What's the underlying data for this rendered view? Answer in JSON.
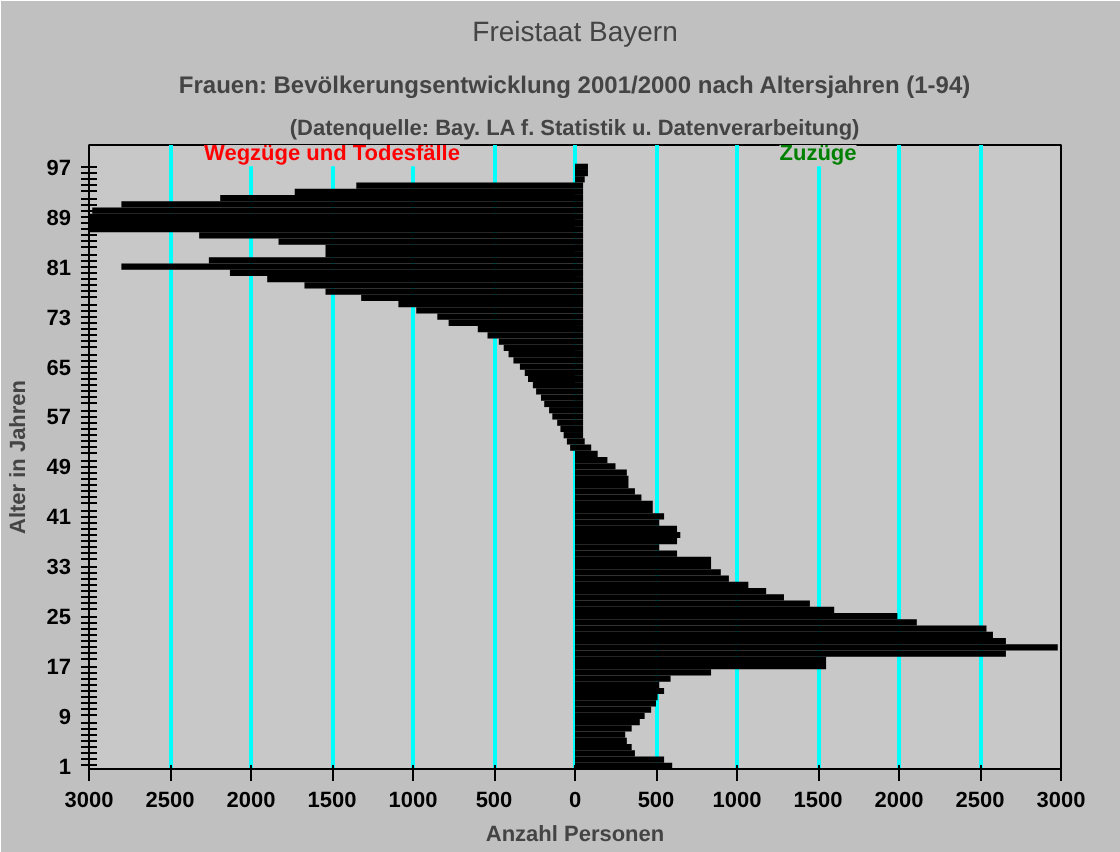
{
  "chart_data": {
    "type": "bar",
    "orientation": "horizontal",
    "title": "Freistaat Bayern",
    "subtitle": "Frauen: Bevölkerungsentwicklung 2001/2000 nach Altersjahren (1-94)",
    "annotations": [
      "(Datenquelle: Bay. LA f. Statistik u. Datenverarbeitung)",
      "Wegzüge und Todesfälle",
      "Zuzüge"
    ],
    "xlabel": "Anzahl Personen",
    "ylabel": "Alter in Jahren",
    "categories": [
      "97",
      null,
      null,
      null,
      null,
      null,
      null,
      null,
      "89",
      null,
      null,
      null,
      null,
      null,
      null,
      null,
      "81",
      null,
      null,
      null,
      null,
      null,
      null,
      null,
      "73",
      null,
      null,
      null,
      null,
      null,
      null,
      null,
      "65",
      null,
      null,
      null,
      null,
      null,
      null,
      null,
      "57",
      null,
      null,
      null,
      null,
      null,
      null,
      null,
      "49",
      null,
      null,
      null,
      null,
      null,
      null,
      null,
      "41",
      null,
      null,
      null,
      null,
      null,
      null,
      null,
      "33",
      null,
      null,
      null,
      null,
      null,
      null,
      null,
      "25",
      null,
      null,
      null,
      null,
      null,
      null,
      null,
      "17",
      null,
      null,
      null,
      null,
      null,
      null,
      null,
      "9",
      null,
      null,
      null,
      null,
      null,
      null,
      null,
      "1"
    ],
    "series": [
      {
        "color": "#000000",
        "values": [
          0,
          0,
          0,
          -1350,
          -1730,
          -2190,
          -2800,
          -2980,
          -3000,
          -3000,
          -3000,
          -2320,
          -1830,
          -1540,
          -1540,
          -2260,
          -2800,
          -2130,
          -1900,
          -1670,
          -1540,
          -1320,
          -1090,
          -980,
          -850,
          -780,
          -600,
          -540,
          -470,
          -440,
          -410,
          -380,
          -340,
          -310,
          -290,
          -260,
          -240,
          -210,
          -190,
          -160,
          -140,
          -110,
          -90,
          -70,
          -50,
          -30,
          0,
          0,
          0,
          0,
          0,
          0,
          0,
          0,
          0,
          0,
          0,
          0,
          0,
          0,
          0,
          0,
          0,
          0,
          0,
          0,
          0,
          0,
          0,
          0,
          0,
          0,
          0,
          0,
          0,
          0,
          0,
          0,
          0,
          0,
          0,
          0,
          0,
          0,
          0,
          0,
          0,
          0,
          0,
          0,
          0,
          0,
          0,
          0,
          0,
          0,
          0
        ]
      },
      {
        "color": "#000000",
        "values": [
          80,
          80,
          60,
          50,
          50,
          50,
          50,
          50,
          50,
          50,
          50,
          50,
          50,
          50,
          50,
          50,
          50,
          50,
          50,
          50,
          50,
          50,
          50,
          50,
          50,
          50,
          50,
          50,
          50,
          50,
          50,
          50,
          50,
          50,
          50,
          50,
          50,
          50,
          50,
          50,
          50,
          50,
          50,
          50,
          60,
          100,
          140,
          200,
          250,
          320,
          330,
          330,
          370,
          410,
          480,
          480,
          550,
          520,
          630,
          650,
          630,
          520,
          630,
          840,
          840,
          900,
          950,
          1070,
          1180,
          1290,
          1450,
          1600,
          1990,
          2110,
          2540,
          2580,
          2660,
          2980,
          2660,
          1550,
          1550,
          840,
          590,
          520,
          550,
          510,
          500,
          470,
          430,
          400,
          350,
          310,
          320,
          350,
          370,
          550,
          600
        ]
      }
    ],
    "xlim": [
      -3000,
      3000
    ],
    "xticks": [
      {
        "value": -3000,
        "label": "3000"
      },
      {
        "value": -2500,
        "label": "2500"
      },
      {
        "value": -2000,
        "label": "2000"
      },
      {
        "value": -1500,
        "label": "1500"
      },
      {
        "value": -1000,
        "label": "1000"
      },
      {
        "value": -500,
        "label": "500"
      },
      0,
      500,
      1000,
      1500,
      2000,
      2500,
      3000
    ],
    "grid": "x"
  }
}
